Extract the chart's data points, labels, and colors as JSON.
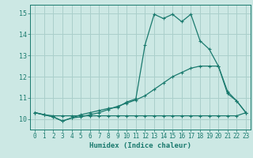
{
  "xlabel": "Humidex (Indice chaleur)",
  "bg_color": "#cce8e4",
  "grid_color": "#aacfcb",
  "line_color": "#1a7a6e",
  "xlim": [
    -0.5,
    23.5
  ],
  "ylim": [
    9.5,
    15.4
  ],
  "xticks": [
    0,
    1,
    2,
    3,
    4,
    5,
    6,
    7,
    8,
    9,
    10,
    11,
    12,
    13,
    14,
    15,
    16,
    17,
    18,
    19,
    20,
    21,
    22,
    23
  ],
  "yticks": [
    10,
    11,
    12,
    13,
    14,
    15
  ],
  "line1_x": [
    0,
    1,
    2,
    3,
    4,
    5,
    6,
    7,
    8,
    9,
    10,
    11,
    12,
    13,
    14,
    15,
    16,
    17,
    18,
    19,
    20,
    21,
    22,
    23
  ],
  "line1_y": [
    10.3,
    10.2,
    10.15,
    10.15,
    10.15,
    10.15,
    10.15,
    10.15,
    10.15,
    10.15,
    10.15,
    10.15,
    10.15,
    10.15,
    10.15,
    10.15,
    10.15,
    10.15,
    10.15,
    10.15,
    10.15,
    10.15,
    10.15,
    10.3
  ],
  "line2_x": [
    0,
    1,
    2,
    3,
    4,
    5,
    6,
    7,
    8,
    9,
    10,
    11,
    12,
    13,
    14,
    15,
    16,
    17,
    18,
    19,
    20,
    21,
    22,
    23
  ],
  "line2_y": [
    10.3,
    10.2,
    10.1,
    9.9,
    10.05,
    10.1,
    10.2,
    10.3,
    10.45,
    10.6,
    10.75,
    10.9,
    11.1,
    11.4,
    11.7,
    12.0,
    12.2,
    12.4,
    12.5,
    12.5,
    12.5,
    11.2,
    10.85,
    10.3
  ],
  "line3_x": [
    0,
    1,
    2,
    3,
    4,
    5,
    6,
    7,
    8,
    9,
    10,
    11,
    12,
    13,
    14,
    15,
    16,
    17,
    18,
    19,
    20,
    21,
    22,
    23
  ],
  "line3_y": [
    10.3,
    10.2,
    10.1,
    9.9,
    10.05,
    10.2,
    10.3,
    10.4,
    10.5,
    10.55,
    10.8,
    10.95,
    13.5,
    14.95,
    14.75,
    14.95,
    14.6,
    14.95,
    13.7,
    13.3,
    12.5,
    11.3,
    10.85,
    10.3
  ]
}
